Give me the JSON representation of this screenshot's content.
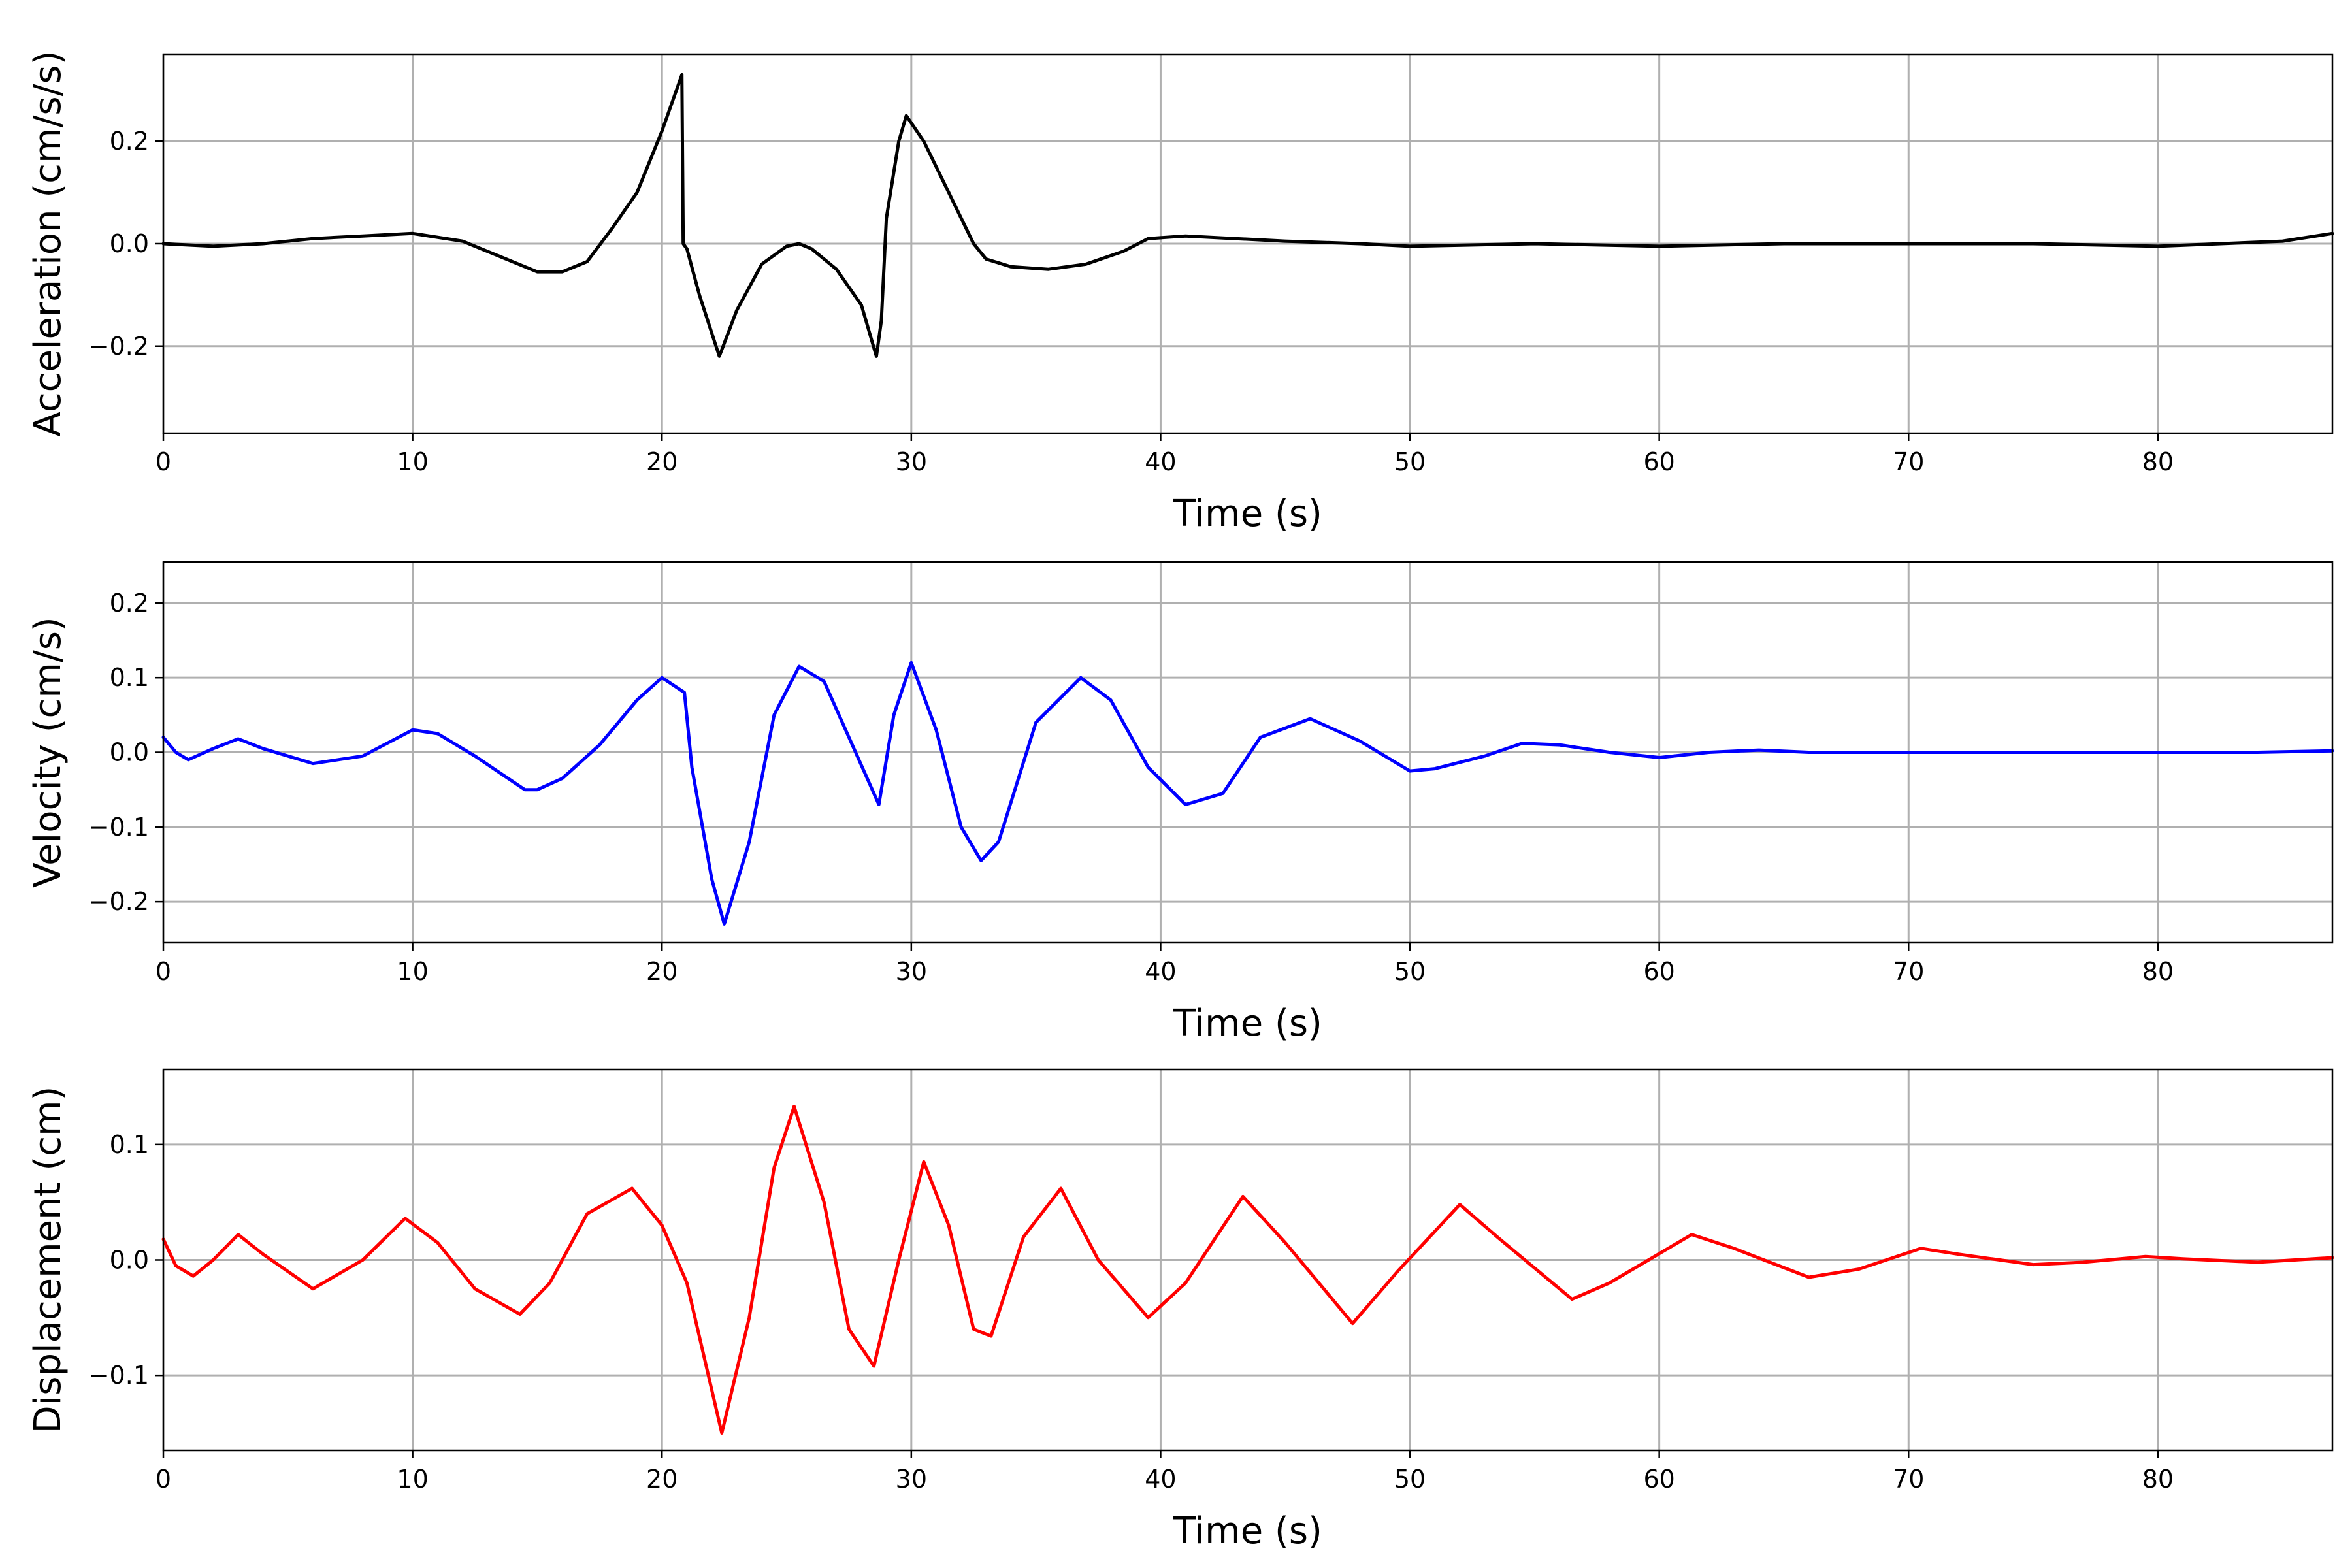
{
  "chart_data": [
    {
      "type": "line",
      "xlabel": "Time (s)",
      "ylabel": "Acceleration (cm/s/s)",
      "xlim": [
        0,
        87
      ],
      "ylim": [
        -0.37,
        0.37
      ],
      "xticks": [
        0,
        10,
        20,
        30,
        40,
        50,
        60,
        70,
        80
      ],
      "xtick_labels": [
        "0",
        "10",
        "20",
        "30",
        "40",
        "50",
        "60",
        "70",
        "80"
      ],
      "yticks": [
        -0.2,
        0.0,
        0.2
      ],
      "ytick_labels": [
        "−0.2",
        "0.0",
        "0.2"
      ],
      "grid": true,
      "color": "#000000",
      "series": [
        {
          "x": [
            0,
            2,
            4,
            6,
            8,
            10,
            12,
            14,
            15,
            16,
            17,
            18,
            19,
            20,
            20.8,
            20.85,
            21,
            21.5,
            22.3,
            23,
            24,
            25,
            25.5,
            26,
            27,
            28,
            28.6,
            28.8,
            29,
            29.5,
            29.8,
            30.5,
            31.5,
            32.5,
            33,
            34,
            35.5,
            37,
            38.5,
            39.5,
            41,
            43,
            45,
            48,
            50,
            55,
            60,
            65,
            70,
            75,
            80,
            85,
            87
          ],
          "y": [
            0.0,
            -0.005,
            0.0,
            0.01,
            0.015,
            0.02,
            0.005,
            -0.035,
            -0.055,
            -0.055,
            -0.035,
            0.03,
            0.1,
            0.22,
            0.33,
            0.0,
            -0.01,
            -0.1,
            -0.22,
            -0.13,
            -0.04,
            -0.005,
            0.0,
            -0.01,
            -0.05,
            -0.12,
            -0.22,
            -0.15,
            0.05,
            0.2,
            0.25,
            0.2,
            0.1,
            0.0,
            -0.03,
            -0.045,
            -0.05,
            -0.04,
            -0.015,
            0.01,
            0.015,
            0.01,
            0.005,
            0.0,
            -0.005,
            0.0,
            -0.005,
            0.0,
            0.0,
            0.0,
            -0.005,
            0.005,
            0.02
          ]
        }
      ]
    },
    {
      "type": "line",
      "xlabel": "Time (s)",
      "ylabel": "Velocity (cm/s)",
      "xlim": [
        0,
        87
      ],
      "ylim": [
        -0.255,
        0.255
      ],
      "xticks": [
        0,
        10,
        20,
        30,
        40,
        50,
        60,
        70,
        80
      ],
      "xtick_labels": [
        "0",
        "10",
        "20",
        "30",
        "40",
        "50",
        "60",
        "70",
        "80"
      ],
      "yticks": [
        -0.2,
        -0.1,
        0.0,
        0.1,
        0.2
      ],
      "ytick_labels": [
        "−0.2",
        "−0.1",
        "0.0",
        "0.1",
        "0.2"
      ],
      "grid": true,
      "color": "#0000ff",
      "series": [
        {
          "x": [
            0,
            0.5,
            1,
            2,
            3,
            4,
            6,
            8,
            10,
            11,
            12.5,
            14.5,
            15,
            16,
            17.5,
            19,
            20,
            20.9,
            21.2,
            22,
            22.5,
            23.5,
            24.5,
            25.5,
            26.5,
            27.5,
            28.7,
            29.3,
            30,
            31,
            32,
            32.8,
            33.5,
            35,
            36.8,
            38,
            39.5,
            41,
            42.5,
            44,
            46,
            48,
            50,
            51,
            53,
            54.5,
            56,
            58,
            60,
            62,
            64,
            66,
            68,
            70,
            72,
            74,
            76,
            78,
            80,
            82,
            84,
            87
          ],
          "y": [
            0.02,
            0.0,
            -0.01,
            0.005,
            0.018,
            0.005,
            -0.015,
            -0.005,
            0.03,
            0.025,
            -0.005,
            -0.05,
            -0.05,
            -0.035,
            0.01,
            0.07,
            0.1,
            0.08,
            -0.02,
            -0.17,
            -0.23,
            -0.12,
            0.05,
            0.115,
            0.095,
            0.02,
            -0.07,
            0.05,
            0.12,
            0.03,
            -0.1,
            -0.145,
            -0.12,
            0.04,
            0.1,
            0.07,
            -0.02,
            -0.07,
            -0.055,
            0.02,
            0.045,
            0.015,
            -0.025,
            -0.022,
            -0.005,
            0.012,
            0.01,
            0.0,
            -0.007,
            0.0,
            0.003,
            0.0,
            0.0,
            0.0,
            0.0,
            0.0,
            0.0,
            0.0,
            0.0,
            0.0,
            0.0,
            0.002
          ]
        }
      ]
    },
    {
      "type": "line",
      "xlabel": "Time (s)",
      "ylabel": "Displacement (cm)",
      "xlim": [
        0,
        87
      ],
      "ylim": [
        -0.165,
        0.165
      ],
      "xticks": [
        0,
        10,
        20,
        30,
        40,
        50,
        60,
        70,
        80
      ],
      "xtick_labels": [
        "0",
        "10",
        "20",
        "30",
        "40",
        "50",
        "60",
        "70",
        "80"
      ],
      "yticks": [
        -0.1,
        0.0,
        0.1
      ],
      "ytick_labels": [
        "−0.1",
        "0.0",
        "0.1"
      ],
      "grid": true,
      "color": "#ff0000",
      "series": [
        {
          "x": [
            0,
            0.5,
            1.2,
            2,
            3,
            4,
            6,
            8,
            9.7,
            11,
            12.5,
            14.3,
            15.5,
            17,
            18.8,
            20,
            21,
            22.4,
            23.5,
            24.5,
            25.3,
            26.5,
            27.5,
            28.5,
            29.5,
            30.5,
            31.5,
            32.5,
            33.2,
            34.5,
            36,
            37.5,
            39.5,
            41,
            43.3,
            45,
            47.7,
            49.5,
            52,
            53.5,
            56.5,
            58,
            61.3,
            63,
            66,
            68,
            70.5,
            72,
            75,
            77,
            79.5,
            81,
            84,
            87
          ],
          "y": [
            0.018,
            -0.005,
            -0.014,
            0.0,
            0.022,
            0.005,
            -0.025,
            0.0,
            0.036,
            0.015,
            -0.025,
            -0.047,
            -0.02,
            0.04,
            0.062,
            0.03,
            -0.02,
            -0.15,
            -0.05,
            0.08,
            0.133,
            0.05,
            -0.06,
            -0.092,
            0.0,
            0.085,
            0.03,
            -0.06,
            -0.066,
            0.02,
            0.062,
            0.0,
            -0.05,
            -0.02,
            0.055,
            0.015,
            -0.055,
            -0.01,
            0.048,
            0.02,
            -0.034,
            -0.02,
            0.022,
            0.01,
            -0.015,
            -0.008,
            0.01,
            0.005,
            -0.004,
            -0.002,
            0.003,
            0.001,
            -0.002,
            0.002
          ]
        }
      ]
    }
  ]
}
